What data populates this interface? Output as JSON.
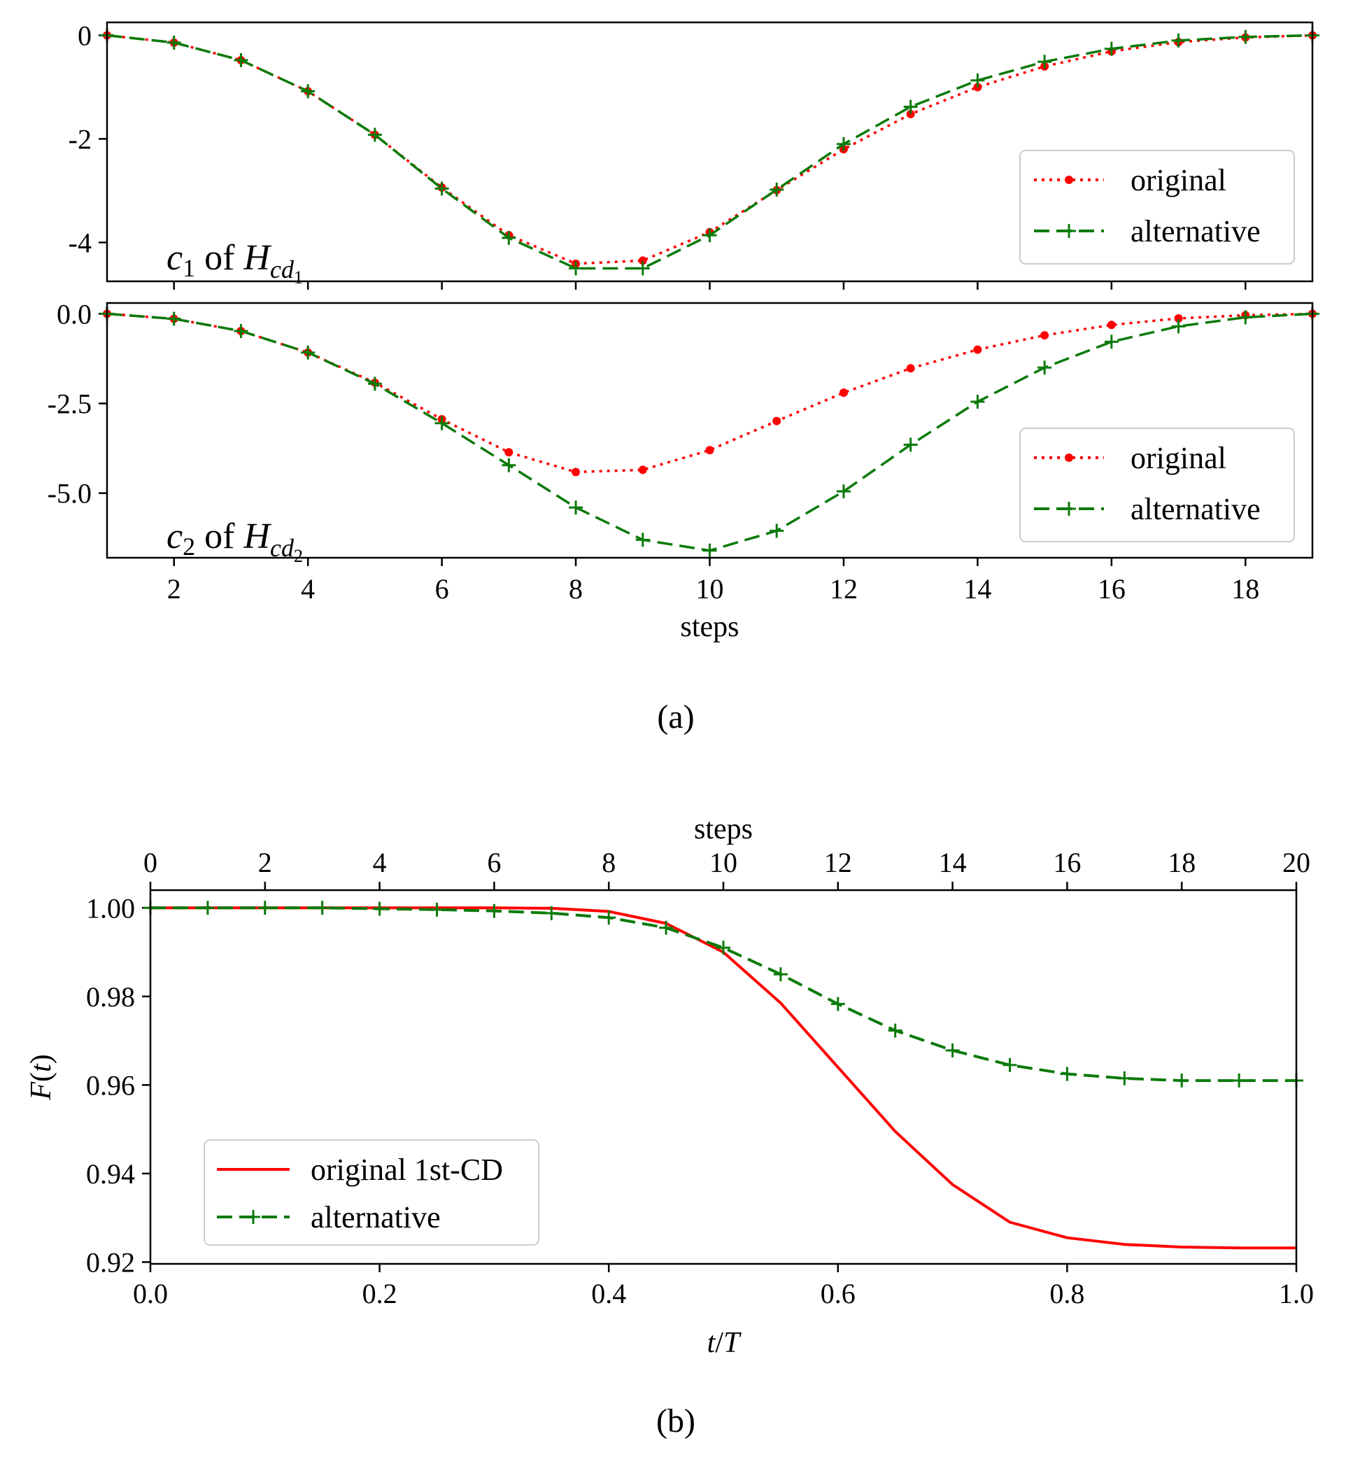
{
  "captions": {
    "a": "(a)",
    "b": "(b)"
  },
  "chart_data": [
    {
      "type": "line",
      "panel": "a-top",
      "annotation": {
        "symbol": "c",
        "sub": "1",
        "of": "of",
        "H": "H",
        "Hsub": "cd",
        "Hsubsub": "1"
      },
      "xlim": [
        1,
        19
      ],
      "ylim": [
        -4.75,
        0.25
      ],
      "yticks": [
        0,
        -2,
        -4
      ],
      "yticklabels": [
        "0",
        "-2",
        "-4"
      ],
      "xlabel": "",
      "legend": {
        "placement": "right"
      },
      "series": [
        {
          "name": "original",
          "color": "#ff0000",
          "style": "dotted",
          "marker": "dot",
          "x": [
            1,
            2,
            3,
            4,
            5,
            6,
            7,
            8,
            9,
            10,
            11,
            12,
            13,
            14,
            15,
            16,
            17,
            18,
            19
          ],
          "y": [
            0,
            -0.14,
            -0.48,
            -1.08,
            -1.92,
            -2.94,
            -3.86,
            -4.41,
            -4.35,
            -3.8,
            -2.99,
            -2.2,
            -1.52,
            -1.0,
            -0.6,
            -0.31,
            -0.13,
            -0.04,
            0
          ]
        },
        {
          "name": "alternative",
          "color": "#0a7a0a",
          "style": "dashed",
          "marker": "plus",
          "x": [
            1,
            2,
            3,
            4,
            5,
            6,
            7,
            8,
            9,
            10,
            11,
            12,
            13,
            14,
            15,
            16,
            17,
            18,
            19
          ],
          "y": [
            0,
            -0.14,
            -0.48,
            -1.08,
            -1.92,
            -2.96,
            -3.91,
            -4.5,
            -4.5,
            -3.86,
            -2.98,
            -2.1,
            -1.38,
            -0.87,
            -0.51,
            -0.26,
            -0.1,
            -0.03,
            0
          ]
        }
      ]
    },
    {
      "type": "line",
      "panel": "a-bottom",
      "annotation": {
        "symbol": "c",
        "sub": "2",
        "of": "of",
        "H": "H",
        "Hsub": "cd",
        "Hsubsub": "2"
      },
      "xlim": [
        1,
        19
      ],
      "ylim": [
        -6.8,
        0.3
      ],
      "xticks": [
        2,
        4,
        6,
        8,
        10,
        12,
        14,
        16,
        18
      ],
      "xticklabels": [
        "2",
        "4",
        "6",
        "8",
        "10",
        "12",
        "14",
        "16",
        "18"
      ],
      "yticks": [
        0,
        -2.5,
        -5
      ],
      "yticklabels": [
        "0.0",
        "-2.5",
        "-5.0"
      ],
      "xlabel": "steps",
      "legend": {
        "placement": "right"
      },
      "series": [
        {
          "name": "original",
          "color": "#ff0000",
          "style": "dotted",
          "marker": "dot",
          "x": [
            1,
            2,
            3,
            4,
            5,
            6,
            7,
            8,
            9,
            10,
            11,
            12,
            13,
            14,
            15,
            16,
            17,
            18,
            19
          ],
          "y": [
            0,
            -0.14,
            -0.48,
            -1.08,
            -1.92,
            -2.94,
            -3.86,
            -4.41,
            -4.35,
            -3.8,
            -2.99,
            -2.2,
            -1.52,
            -1.0,
            -0.6,
            -0.31,
            -0.13,
            -0.04,
            0
          ]
        },
        {
          "name": "alternative",
          "color": "#0a7a0a",
          "style": "dashed",
          "marker": "plus",
          "x": [
            1,
            2,
            3,
            4,
            5,
            6,
            7,
            8,
            9,
            10,
            11,
            12,
            13,
            14,
            15,
            16,
            17,
            18,
            19
          ],
          "y": [
            0,
            -0.14,
            -0.48,
            -1.08,
            -1.95,
            -3.05,
            -4.22,
            -5.4,
            -6.3,
            -6.6,
            -6.05,
            -4.95,
            -3.65,
            -2.45,
            -1.5,
            -0.78,
            -0.35,
            -0.1,
            0
          ]
        }
      ]
    },
    {
      "type": "line",
      "panel": "b",
      "xlim": [
        0,
        1
      ],
      "ylim": [
        0.9196,
        1.004
      ],
      "xticks": [
        0,
        0.2,
        0.4,
        0.6,
        0.8,
        1.0
      ],
      "xticklabels": [
        "0.0",
        "0.2",
        "0.4",
        "0.6",
        "0.8",
        "1.0"
      ],
      "yticks": [
        1.0,
        0.98,
        0.96,
        0.94,
        0.92
      ],
      "yticklabels": [
        "1.00",
        "0.98",
        "0.96",
        "0.94",
        "0.92"
      ],
      "xlabel": {
        "num": "t",
        "slash": "/",
        "den": "T"
      },
      "ylabel": {
        "func": "F",
        "arg": "t"
      },
      "top_axis": {
        "label": "steps",
        "ticks": [
          0,
          2,
          4,
          6,
          8,
          10,
          12,
          14,
          16,
          18,
          20
        ],
        "ticklabels": [
          "0",
          "2",
          "4",
          "6",
          "8",
          "10",
          "12",
          "14",
          "16",
          "18",
          "20"
        ],
        "range": [
          0,
          20
        ]
      },
      "legend": {
        "placement": "lower-left"
      },
      "series": [
        {
          "name": "original 1st-CD",
          "color": "#ff0000",
          "style": "solid",
          "marker": "none",
          "x": [
            0,
            0.1,
            0.2,
            0.3,
            0.35,
            0.4,
            0.45,
            0.5,
            0.55,
            0.6,
            0.65,
            0.7,
            0.75,
            0.8,
            0.85,
            0.9,
            0.95,
            1.0
          ],
          "y": [
            1.0,
            1.0,
            1.0,
            1.0,
            0.9999,
            0.9992,
            0.9965,
            0.99,
            0.9785,
            0.964,
            0.9495,
            0.9375,
            0.929,
            0.9255,
            0.924,
            0.9234,
            0.9232,
            0.9232
          ]
        },
        {
          "name": "alternative",
          "color": "#0a7a0a",
          "style": "dashed",
          "marker": "plus",
          "x": [
            0,
            0.05,
            0.1,
            0.15,
            0.2,
            0.25,
            0.3,
            0.35,
            0.4,
            0.45,
            0.5,
            0.55,
            0.6,
            0.65,
            0.7,
            0.75,
            0.8,
            0.85,
            0.9,
            0.95,
            1.0
          ],
          "y": [
            1.0,
            1.0,
            1.0,
            1.0,
            0.9998,
            0.9996,
            0.9993,
            0.9988,
            0.9978,
            0.9955,
            0.991,
            0.985,
            0.9783,
            0.9723,
            0.9678,
            0.9645,
            0.9625,
            0.9615,
            0.961,
            0.961,
            0.961
          ]
        }
      ]
    }
  ]
}
